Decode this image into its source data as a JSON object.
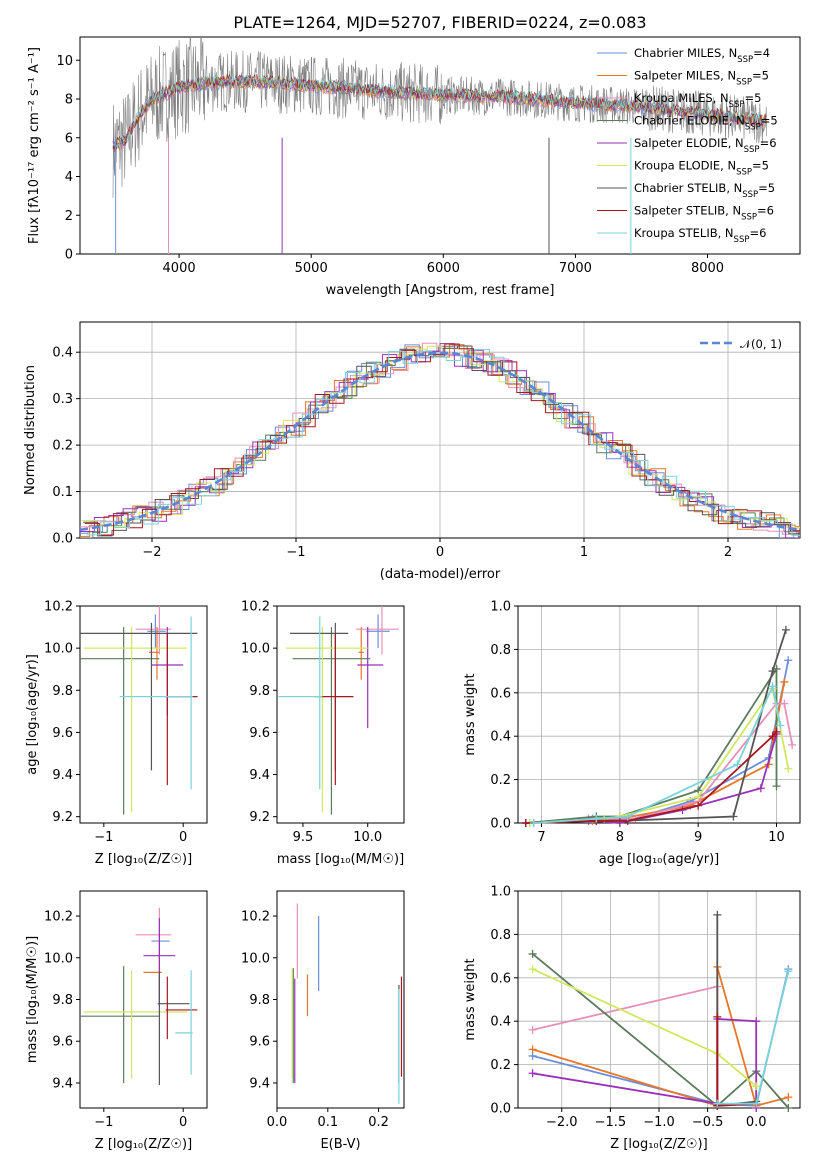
{
  "title": "PLATE=1264, MJD=52707, FIBERID=0224, z=0.083",
  "colors": [
    "#6b8fd9",
    "#e87628",
    "#e88fb9",
    "#5b7b5b",
    "#9932b8",
    "#cfe860",
    "#555555",
    "#a81620",
    "#7ad4dc"
  ],
  "chart_data": [
    {
      "type": "line",
      "panel": "spectrum",
      "xlabel": "wavelength [Angstrom, rest frame]",
      "ylabel": "Flux [fλ10⁻¹⁷ erg cm⁻² s⁻¹ A⁻¹]",
      "xlim": [
        3250,
        8700
      ],
      "ylim": [
        0,
        11.2
      ],
      "xticks": [
        "4000",
        "5000",
        "6000",
        "7000",
        "8000"
      ],
      "yticks": [
        "0",
        "2",
        "4",
        "6",
        "8",
        "10"
      ],
      "legend_position": "right",
      "series_continuum": {
        "x": [
          3500,
          3600,
          3700,
          3800,
          4000,
          4300,
          4600,
          5000,
          5500,
          6000,
          6500,
          7000,
          7500,
          8000,
          8500
        ],
        "y": [
          5.5,
          5.9,
          7.2,
          8.0,
          8.6,
          8.9,
          8.9,
          8.7,
          8.4,
          8.2,
          8.1,
          7.8,
          7.6,
          7.2,
          6.8
        ]
      },
      "series": [
        {
          "name": "Chabrier MILES",
          "nssp": "4"
        },
        {
          "name": "Salpeter MILES",
          "nssp": "5"
        },
        {
          "name": "Kroupa MILES",
          "nssp": "5"
        },
        {
          "name": "Chabrier ELODIE",
          "nssp": "5"
        },
        {
          "name": "Salpeter ELODIE",
          "nssp": "6"
        },
        {
          "name": "Kroupa ELODIE",
          "nssp": "5"
        },
        {
          "name": "Chabrier STELIB",
          "nssp": "5"
        },
        {
          "name": "Salpeter STELIB",
          "nssp": "6"
        },
        {
          "name": "Kroupa STELIB",
          "nssp": "6"
        }
      ]
    },
    {
      "type": "histogram",
      "panel": "residuals",
      "xlabel": "(data-model)/error",
      "ylabel": "Normed distribution",
      "xlim": [
        -2.5,
        2.5
      ],
      "ylim": [
        0,
        0.465
      ],
      "xticks": [
        "−2",
        "−1",
        "0",
        "1",
        "2"
      ],
      "yticks": [
        "0.0",
        "0.1",
        "0.2",
        "0.3",
        "0.4"
      ],
      "grid": true,
      "legend": "𝒩(0, 1)",
      "legend_position": "top-right"
    },
    {
      "type": "scatter",
      "panel": "age-vs-Z",
      "xlabel": "Z [log₁₀(Z/Z☉)]",
      "ylabel": "age  [log₁₀(age/yr)]",
      "xlim": [
        -1.3,
        0.3
      ],
      "ylim": [
        9.17,
        10.2
      ],
      "xticks": [
        "−1",
        "0"
      ],
      "yticks": [
        "9.2",
        "9.4",
        "9.6",
        "9.8",
        "10.0",
        "10.2"
      ],
      "points": [
        {
          "x": -0.35,
          "y": 10.08,
          "xerr": [
            0.1,
            0.13
          ],
          "yerr": [
            0.08,
            0.08
          ]
        },
        {
          "x": -0.33,
          "y": 9.98,
          "xerr": [
            0.1,
            0.03
          ],
          "yerr": [
            0.13,
            0.12
          ]
        },
        {
          "x": -0.3,
          "y": 10.09,
          "xerr": [
            0.3,
            0.15
          ],
          "yerr": [
            0.12,
            0.13
          ]
        },
        {
          "x": -0.75,
          "y": 9.95,
          "xerr": [
            0.55,
            0.45
          ],
          "yerr": [
            0.74,
            0.15
          ]
        },
        {
          "x": -0.2,
          "y": 9.92,
          "xerr": [
            0.2,
            0.2
          ],
          "yerr": [
            0.24,
            0.18
          ]
        },
        {
          "x": -0.65,
          "y": 10.0,
          "xerr": [
            0.6,
            0.7
          ],
          "yerr": [
            0.78,
            0.1
          ]
        },
        {
          "x": -0.4,
          "y": 10.07,
          "xerr": [
            0.9,
            0.58
          ],
          "yerr": [
            0.65,
            0.05
          ]
        },
        {
          "x": -0.2,
          "y": 9.77,
          "xerr": [
            0.02,
            0.38
          ],
          "yerr": [
            0.42,
            0.3
          ]
        },
        {
          "x": 0.1,
          "y": 9.77,
          "xerr": [
            0.9,
            0.02
          ],
          "yerr": [
            0.44,
            0.38
          ]
        }
      ]
    },
    {
      "type": "scatter",
      "panel": "age-vs-mass",
      "xlabel": "mass [log₁₀(M/M☉)]",
      "ylabel": "",
      "xlim": [
        9.3,
        10.28
      ],
      "ylim": [
        9.17,
        10.2
      ],
      "xticks": [
        "9.5",
        "10.0"
      ],
      "yticks": [
        "9.2",
        "9.4",
        "9.6",
        "9.8",
        "10.0",
        "10.2"
      ],
      "points": [
        {
          "x": 10.08,
          "y": 10.08,
          "xerr": [
            0.09,
            0.09
          ],
          "yerr": [
            0.08,
            0.08
          ]
        },
        {
          "x": 9.95,
          "y": 9.98,
          "xerr": [
            0.02,
            0.02
          ],
          "yerr": [
            0.13,
            0.12
          ]
        },
        {
          "x": 10.11,
          "y": 10.09,
          "xerr": [
            0.2,
            0.13
          ],
          "yerr": [
            0.12,
            0.13
          ]
        },
        {
          "x": 9.72,
          "y": 9.95,
          "xerr": [
            0.3,
            0.3
          ],
          "yerr": [
            0.74,
            0.15
          ]
        },
        {
          "x": 10.0,
          "y": 9.92,
          "xerr": [
            0.08,
            0.12
          ],
          "yerr": [
            0.3,
            0.18
          ]
        },
        {
          "x": 9.65,
          "y": 10.0,
          "xerr": [
            0.28,
            0.35
          ],
          "yerr": [
            0.78,
            0.1
          ]
        },
        {
          "x": 9.75,
          "y": 10.07,
          "xerr": [
            0.35,
            0.1
          ],
          "yerr": [
            0.65,
            0.05
          ]
        },
        {
          "x": 9.75,
          "y": 9.77,
          "xerr": [
            0.16,
            0.14
          ],
          "yerr": [
            0.42,
            0.3
          ]
        },
        {
          "x": 9.63,
          "y": 9.77,
          "xerr": [
            0.32,
            0.02
          ],
          "yerr": [
            0.44,
            0.38
          ]
        }
      ]
    },
    {
      "type": "line",
      "panel": "weight-vs-age",
      "xlabel": "age  [log₁₀(age/yr)]",
      "ylabel": "mass weight",
      "xlim": [
        6.7,
        10.3
      ],
      "ylim": [
        0,
        1.0
      ],
      "xticks": [
        "7",
        "8",
        "9",
        "10"
      ],
      "yticks": [
        "0.0",
        "0.2",
        "0.4",
        "0.6",
        "0.8",
        "1.0"
      ],
      "grid": true,
      "series": [
        {
          "x": [
            6.85,
            7.65,
            8.1,
            8.9,
            9.9,
            10.15
          ],
          "y": [
            0.0,
            0.02,
            0.01,
            0.1,
            0.3,
            0.75
          ]
        },
        {
          "x": [
            6.9,
            7.65,
            8.0,
            8.9,
            9.9,
            10.1
          ],
          "y": [
            0.0,
            0.01,
            0.02,
            0.08,
            0.27,
            0.65
          ]
        },
        {
          "x": [
            6.8,
            7.6,
            8.2,
            9.0,
            10.0,
            10.1,
            10.2
          ],
          "y": [
            0.0,
            0.02,
            0.02,
            0.1,
            0.55,
            0.55,
            0.36
          ]
        },
        {
          "x": [
            6.8,
            7.7,
            8.0,
            9.0,
            10.0,
            10.0
          ],
          "y": [
            0.0,
            0.03,
            0.03,
            0.15,
            0.71,
            0.17
          ]
        },
        {
          "x": [
            6.8,
            7.6,
            8.0,
            8.8,
            9.8,
            10.0
          ],
          "y": [
            0.0,
            0.01,
            0.0,
            0.06,
            0.16,
            0.41
          ]
        },
        {
          "x": [
            6.85,
            7.8,
            8.0,
            9.0,
            9.95,
            10.15
          ],
          "y": [
            0.0,
            0.02,
            0.03,
            0.12,
            0.62,
            0.25
          ]
        },
        {
          "x": [
            6.8,
            7.7,
            8.0,
            9.45,
            9.95,
            10.12
          ],
          "y": [
            0.0,
            0.01,
            0.01,
            0.03,
            0.7,
            0.89
          ]
        },
        {
          "x": [
            6.8,
            7.7,
            8.1,
            9.0,
            9.95,
            10.0
          ],
          "y": [
            0.0,
            0.01,
            0.01,
            0.08,
            0.4,
            0.42
          ]
        },
        {
          "x": [
            6.9,
            7.7,
            8.1,
            9.5,
            9.95,
            10.05
          ],
          "y": [
            0.0,
            0.02,
            0.03,
            0.27,
            0.63,
            0.45
          ]
        }
      ]
    },
    {
      "type": "scatter",
      "panel": "mass-vs-Z",
      "xlabel": "Z [log₁₀(Z/Z☉)]",
      "ylabel": "mass [log₁₀(M/M☉)]",
      "xlim": [
        -1.3,
        0.3
      ],
      "ylim": [
        9.28,
        10.32
      ],
      "xticks": [
        "−1",
        "0"
      ],
      "yticks": [
        "9.4",
        "9.6",
        "9.8",
        "10.0",
        "10.2"
      ],
      "points": [
        {
          "x": -0.3,
          "y": 10.08,
          "xerr": [
            0.1,
            0.13
          ],
          "yerr": [
            0.08,
            0.08
          ]
        },
        {
          "x": -0.3,
          "y": 9.93,
          "xerr": [
            0.2,
            0.03
          ],
          "yerr": [
            0.13,
            0.12
          ]
        },
        {
          "x": -0.3,
          "y": 10.11,
          "xerr": [
            0.3,
            0.15
          ],
          "yerr": [
            0.12,
            0.13
          ]
        },
        {
          "x": -0.75,
          "y": 9.72,
          "xerr": [
            0.55,
            0.45
          ],
          "yerr": [
            0.32,
            0.24
          ]
        },
        {
          "x": -0.3,
          "y": 10.01,
          "xerr": [
            0.2,
            0.2
          ],
          "yerr": [
            0.24,
            0.18
          ]
        },
        {
          "x": -0.65,
          "y": 9.74,
          "xerr": [
            0.6,
            0.7
          ],
          "yerr": [
            0.32,
            0.2
          ]
        },
        {
          "x": -0.3,
          "y": 9.78,
          "xerr": [
            0.02,
            0.38
          ],
          "yerr": [
            0.39,
            0.15
          ]
        },
        {
          "x": -0.2,
          "y": 9.75,
          "xerr": [
            0.02,
            0.38
          ],
          "yerr": [
            0.14,
            0.16
          ]
        },
        {
          "x": 0.1,
          "y": 9.64,
          "xerr": [
            0.2,
            0.02
          ],
          "yerr": [
            0.2,
            0.3
          ]
        }
      ]
    },
    {
      "type": "scatter",
      "panel": "mass-vs-EBV",
      "xlabel": "E(B-V)",
      "ylabel": "",
      "xlim": [
        0.0,
        0.25
      ],
      "ylim": [
        9.28,
        10.32
      ],
      "xticks": [
        "0.0",
        "0.1",
        "0.2"
      ],
      "yticks": [
        "9.4",
        "9.6",
        "9.8",
        "10.0",
        "10.2"
      ],
      "points": [
        {
          "x": 0.082,
          "y": 10.02,
          "yerr": [
            0.18,
            0.18
          ]
        },
        {
          "x": 0.06,
          "y": 9.82,
          "yerr": [
            0.1,
            0.1
          ]
        },
        {
          "x": 0.04,
          "y": 10.1,
          "yerr": [
            0.2,
            0.16
          ]
        },
        {
          "x": 0.032,
          "y": 9.65,
          "yerr": [
            0.25,
            0.3
          ]
        },
        {
          "x": 0.035,
          "y": 9.6,
          "yerr": [
            0.2,
            0.3
          ]
        },
        {
          "x": 0.03,
          "y": 9.6,
          "yerr": [
            0.18,
            0.35
          ]
        },
        {
          "x": 0.24,
          "y": 9.62,
          "yerr": [
            0.22,
            0.25
          ]
        },
        {
          "x": 0.245,
          "y": 9.65,
          "yerr": [
            0.22,
            0.26
          ]
        },
        {
          "x": 0.24,
          "y": 9.6,
          "yerr": [
            0.3,
            0.25
          ]
        }
      ]
    },
    {
      "type": "line",
      "panel": "weight-vs-Z",
      "xlabel": "Z [log₁₀(Z/Z☉)]",
      "ylabel": "mass weight",
      "xlim": [
        -2.45,
        0.45
      ],
      "ylim": [
        0,
        1.0
      ],
      "xticks": [
        "−2.0",
        "−1.5",
        "−1.0",
        "−0.5",
        "0.0"
      ],
      "yticks": [
        "0.0",
        "0.2",
        "0.4",
        "0.6",
        "0.8",
        "1.0"
      ],
      "grid": true,
      "series": [
        {
          "x": [
            -2.3,
            -0.4,
            -0.0,
            0.33
          ],
          "y": [
            0.24,
            0.02,
            0.01,
            0.64
          ]
        },
        {
          "x": [
            -2.3,
            -0.4,
            -0.4,
            0.0,
            0.33
          ],
          "y": [
            0.27,
            0.01,
            0.65,
            0.01,
            0.05
          ]
        },
        {
          "x": [
            -2.3,
            -0.4,
            -0.4,
            0.0
          ],
          "y": [
            0.36,
            0.56,
            0.01,
            0.02
          ]
        },
        {
          "x": [
            -2.3,
            -0.4,
            0.0,
            0.33
          ],
          "y": [
            0.71,
            0.01,
            0.17,
            0.0
          ]
        },
        {
          "x": [
            -2.3,
            -0.4,
            -0.4,
            0.0,
            0.0
          ],
          "y": [
            0.16,
            0.02,
            0.41,
            0.4,
            0.0
          ]
        },
        {
          "x": [
            -2.3,
            -0.4,
            0.0
          ],
          "y": [
            0.64,
            0.25,
            0.1
          ]
        },
        {
          "x": [
            -0.4,
            -0.4,
            0.0
          ],
          "y": [
            0.89,
            0.01,
            0.03
          ]
        },
        {
          "x": [
            -0.4,
            -0.4,
            0.0
          ],
          "y": [
            0.42,
            0.01,
            0.02
          ]
        },
        {
          "x": [
            -0.4,
            0.0,
            0.33
          ],
          "y": [
            0.02,
            0.02,
            0.63
          ]
        }
      ]
    }
  ]
}
